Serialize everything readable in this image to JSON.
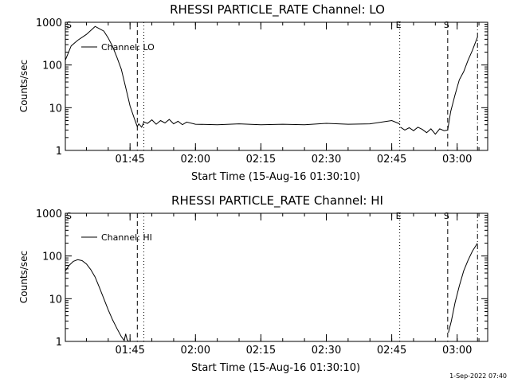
{
  "footer": {
    "timestamp": "1-Sep-2022 07:40"
  },
  "chart_data": [
    {
      "type": "line",
      "title": "RHESSI PARTICLE_RATE Channel: LO",
      "xlabel": "Start Time (15-Aug-16 01:30:10)",
      "ylabel": "Counts/sec",
      "yscale": "log",
      "ylim": [
        1,
        1000
      ],
      "xlim": [
        "01:30:10",
        "03:07:00"
      ],
      "x_ticks": [
        "01:45",
        "02:00",
        "02:15",
        "02:30",
        "02:45",
        "03:00"
      ],
      "y_ticks": [
        "1",
        "10",
        "100",
        "1000"
      ],
      "legend": {
        "label": "Channel: LO",
        "position": "top-left"
      },
      "markers": [
        {
          "label": "S",
          "time": "01:30:10",
          "style": "dashed"
        },
        {
          "label": "",
          "time": "01:46:40",
          "style": "dashed"
        },
        {
          "label": "",
          "time": "01:48:10",
          "style": "dotted"
        },
        {
          "label": "E",
          "time": "02:46:50",
          "style": "dotted"
        },
        {
          "label": "S",
          "time": "02:57:50",
          "style": "dashed"
        },
        {
          "label": "",
          "time": "03:04:40",
          "style": "dashdot"
        }
      ],
      "series": [
        {
          "name": "Channel: LO",
          "segments": [
            {
              "x": [
                "01:30:10",
                "01:31:30",
                "01:33:00",
                "01:35:00",
                "01:37:00",
                "01:39:00",
                "01:40:00",
                "01:41:00",
                "01:42:00",
                "01:43:00",
                "01:44:00",
                "01:45:00",
                "01:46:00",
                "01:46:40",
                "01:47:00",
                "01:47:40",
                "01:48:10",
                "01:49:00",
                "01:50:00",
                "01:51:00",
                "01:52:00",
                "01:53:00",
                "01:54:00",
                "01:55:00",
                "01:56:00",
                "01:57:00",
                "01:58:00",
                "02:00:00",
                "02:05:00",
                "02:10:00",
                "02:15:00",
                "02:20:00",
                "02:25:00",
                "02:30:00",
                "02:35:00",
                "02:40:00",
                "02:45:00",
                "02:46:50"
              ],
              "y": [
                130,
                280,
                380,
                520,
                800,
                620,
                430,
                270,
                150,
                80,
                30,
                11,
                5.5,
                3.6,
                4.2,
                3.5,
                4.6,
                4.3,
                5.2,
                4.1,
                5.0,
                4.4,
                5.3,
                4.2,
                4.8,
                4.0,
                4.6,
                4.1,
                4.0,
                4.2,
                4.0,
                4.1,
                4.0,
                4.3,
                4.1,
                4.2,
                5.0,
                4.2
              ]
            },
            {
              "x": [
                "02:47:00",
                "02:48:00",
                "02:49:00",
                "02:50:00",
                "02:51:00",
                "02:52:00",
                "02:53:00",
                "02:54:00",
                "02:55:00",
                "02:56:00",
                "02:57:00",
                "02:57:50",
                "02:58:30",
                "02:59:30",
                "03:00:30",
                "03:01:30",
                "03:02:30",
                "03:03:30",
                "03:04:40"
              ],
              "y": [
                3.5,
                3.0,
                3.4,
                2.9,
                3.5,
                3.1,
                2.6,
                3.2,
                2.4,
                3.2,
                2.9,
                3.0,
                8,
                20,
                45,
                70,
                130,
                220,
                450
              ]
            }
          ]
        }
      ]
    },
    {
      "type": "line",
      "title": "RHESSI PARTICLE_RATE Channel: HI",
      "xlabel": "Start Time (15-Aug-16 01:30:10)",
      "ylabel": "Counts/sec",
      "yscale": "log",
      "ylim": [
        1,
        1000
      ],
      "xlim": [
        "01:30:10",
        "03:07:00"
      ],
      "x_ticks": [
        "01:45",
        "02:00",
        "02:15",
        "02:30",
        "02:45",
        "03:00"
      ],
      "y_ticks": [
        "1",
        "10",
        "100",
        "1000"
      ],
      "legend": {
        "label": "Channel: HI",
        "position": "top-left"
      },
      "markers": [
        {
          "label": "S",
          "time": "01:30:10",
          "style": "dashed"
        },
        {
          "label": "",
          "time": "01:46:40",
          "style": "dashed"
        },
        {
          "label": "",
          "time": "01:48:10",
          "style": "dotted"
        },
        {
          "label": "E",
          "time": "02:46:50",
          "style": "dotted"
        },
        {
          "label": "S",
          "time": "02:57:50",
          "style": "dashed"
        },
        {
          "label": "",
          "time": "03:04:40",
          "style": "dashdot"
        }
      ],
      "series": [
        {
          "name": "Channel: HI",
          "segments": [
            {
              "x": [
                "01:30:10",
                "01:31:00",
                "01:32:00",
                "01:33:00",
                "01:34:00",
                "01:35:00",
                "01:36:00",
                "01:37:00",
                "01:38:00",
                "01:39:00",
                "01:40:00",
                "01:41:00",
                "01:42:00",
                "01:43:00",
                "01:43:40",
                "01:44:00",
                "01:44:20",
                "01:44:40"
              ],
              "y": [
                45,
                60,
                75,
                82,
                78,
                65,
                48,
                32,
                18,
                10,
                5.5,
                3.2,
                2.0,
                1.3,
                1.05,
                1.5,
                1.1,
                1.0
              ]
            },
            {
              "x": [
                "02:58:00",
                "02:58:40",
                "02:59:30",
                "03:00:30",
                "03:01:30",
                "03:02:30",
                "03:03:30",
                "03:04:40"
              ],
              "y": [
                1.6,
                3,
                8,
                20,
                45,
                80,
                130,
                200
              ]
            }
          ]
        }
      ]
    }
  ]
}
